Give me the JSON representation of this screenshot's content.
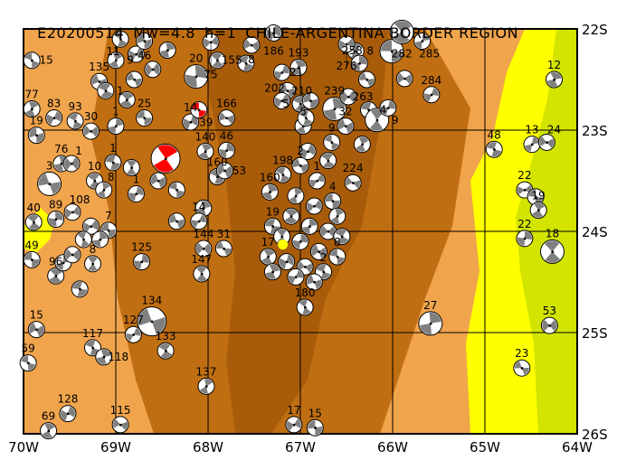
{
  "title": {
    "event_id": "E20200514",
    "magnitude": "Mw=4.8",
    "depth": "h=1",
    "region": "CHILE-ARGENTINA BORDER REGION"
  },
  "map": {
    "lon_range": [
      -70,
      -64
    ],
    "lat_range": [
      -26,
      -22
    ],
    "lon_ticks": [
      "70W",
      "69W",
      "68W",
      "67W",
      "66W",
      "65W",
      "64W"
    ],
    "lat_ticks": [
      "22S",
      "23S",
      "24S",
      "25S",
      "26S"
    ],
    "grid": true,
    "colors": {
      "lowland_orange": "#f0a44c",
      "highland_brown": "#c06e12",
      "peak_brown": "#a85c0a",
      "plain_yellow": "#ffff00",
      "plain_green": "#d2e400",
      "mechanism_fill": "#808080",
      "highlight_mechanism": "#ff0000",
      "epicenter": "#ffff00"
    },
    "epicenter": {
      "lon": -67.19,
      "lat": -24.13
    }
  },
  "mechanisms": [
    {
      "lon": -69.91,
      "lat": -22.31,
      "label": "15"
    },
    {
      "lon": -69.91,
      "lat": -22.79,
      "label": "77"
    },
    {
      "lon": -69.67,
      "lat": -22.88,
      "label": "83"
    },
    {
      "lon": -69.86,
      "lat": -23.05,
      "label": "19"
    },
    {
      "lon": -69.44,
      "lat": -22.91,
      "label": "93"
    },
    {
      "lon": -69.59,
      "lat": -23.33,
      "label": "76"
    },
    {
      "lon": -69.48,
      "lat": -23.33,
      "label": "1"
    },
    {
      "lon": -69.72,
      "lat": -23.53,
      "label": "3",
      "size": "l"
    },
    {
      "lon": -69.89,
      "lat": -23.91,
      "label": "40"
    },
    {
      "lon": -69.65,
      "lat": -23.88,
      "label": "89"
    },
    {
      "lon": -69.47,
      "lat": -23.81,
      "label": "108"
    },
    {
      "lon": -69.91,
      "lat": -24.28,
      "label": "49"
    },
    {
      "lon": -69.65,
      "lat": -24.44,
      "label": "96"
    },
    {
      "lon": -69.57,
      "lat": -24.31,
      "label": ""
    },
    {
      "lon": -69.47,
      "lat": -24.23,
      "label": ""
    },
    {
      "lon": -69.39,
      "lat": -24.57,
      "label": ""
    },
    {
      "lon": -69.25,
      "lat": -24.32,
      "label": "8"
    },
    {
      "lon": -68.72,
      "lat": -24.3,
      "label": "125"
    },
    {
      "lon": -69.86,
      "lat": -24.97,
      "label": "15"
    },
    {
      "lon": -69.95,
      "lat": -25.3,
      "label": "59"
    },
    {
      "lon": -69.73,
      "lat": -25.97,
      "label": "69"
    },
    {
      "lon": -69.52,
      "lat": -25.8,
      "label": "128"
    },
    {
      "lon": -68.95,
      "lat": -25.91,
      "label": "115"
    },
    {
      "lon": -69.25,
      "lat": -25.15,
      "label": "117"
    },
    {
      "lon": -69.13,
      "lat": -25.24,
      "label": "118"
    },
    {
      "lon": -68.81,
      "lat": -25.02,
      "label": "127"
    },
    {
      "lon": -68.61,
      "lat": -24.89,
      "label": "134",
      "size": "xl"
    },
    {
      "lon": -68.46,
      "lat": -25.18,
      "label": "133"
    },
    {
      "lon": -68.02,
      "lat": -25.53,
      "label": "137"
    },
    {
      "lon": -67.07,
      "lat": -25.91,
      "label": "17"
    },
    {
      "lon": -66.84,
      "lat": -25.94,
      "label": "15"
    },
    {
      "lon": -66.95,
      "lat": -24.75,
      "label": "180"
    },
    {
      "lon": -65.59,
      "lat": -24.91,
      "label": "27",
      "size": "l"
    },
    {
      "lon": -64.3,
      "lat": -24.93,
      "label": "53"
    },
    {
      "lon": -64.6,
      "lat": -25.35,
      "label": "23"
    },
    {
      "lon": -64.27,
      "lat": -24.2,
      "label": "18",
      "size": "l"
    },
    {
      "lon": -64.57,
      "lat": -24.07,
      "label": "22"
    },
    {
      "lon": -64.57,
      "lat": -23.59,
      "label": "22"
    },
    {
      "lon": -64.45,
      "lat": -23.66,
      "label": ""
    },
    {
      "lon": -64.42,
      "lat": -23.79,
      "label": "19"
    },
    {
      "lon": -64.49,
      "lat": -23.14,
      "label": "13"
    },
    {
      "lon": -64.33,
      "lat": -23.12,
      "label": "24"
    },
    {
      "lon": -64.9,
      "lat": -23.19,
      "label": "48"
    },
    {
      "lon": -64.25,
      "lat": -22.5,
      "label": "12"
    },
    {
      "lon": -65.58,
      "lat": -22.65,
      "label": "284"
    },
    {
      "lon": -69.18,
      "lat": -22.52,
      "label": "135"
    },
    {
      "lon": -69.11,
      "lat": -22.61,
      "label": "1"
    },
    {
      "lon": -69.0,
      "lat": -22.31,
      "label": "9"
    },
    {
      "lon": -68.78,
      "lat": -22.25,
      "label": ""
    },
    {
      "lon": -68.69,
      "lat": -22.12,
      "label": "46"
    },
    {
      "lon": -68.95,
      "lat": -22.1,
      "label": "11"
    },
    {
      "lon": -68.44,
      "lat": -22.21,
      "label": ""
    },
    {
      "lon": -68.6,
      "lat": -22.4,
      "label": ""
    },
    {
      "lon": -68.8,
      "lat": -22.5,
      "label": ""
    },
    {
      "lon": -67.9,
      "lat": -22.31,
      "label": "155"
    },
    {
      "lon": -68.13,
      "lat": -22.47,
      "label": "20",
      "size": "l"
    },
    {
      "lon": -67.97,
      "lat": -22.13,
      "label": "75"
    },
    {
      "lon": -68.69,
      "lat": -22.88,
      "label": "25"
    },
    {
      "lon": -68.88,
      "lat": -22.7,
      "label": ""
    },
    {
      "lon": -69.0,
      "lat": -22.96,
      "label": "1"
    },
    {
      "lon": -69.27,
      "lat": -23.01,
      "label": "30"
    },
    {
      "lon": -69.03,
      "lat": -23.32,
      "label": "1"
    },
    {
      "lon": -68.83,
      "lat": -23.37,
      "label": ""
    },
    {
      "lon": -68.78,
      "lat": -23.63,
      "label": "1"
    },
    {
      "lon": -68.54,
      "lat": -23.5,
      "label": ""
    },
    {
      "lon": -68.34,
      "lat": -23.59,
      "label": ""
    },
    {
      "lon": -68.03,
      "lat": -23.21,
      "label": "140"
    },
    {
      "lon": -68.19,
      "lat": -22.92,
      "label": "14"
    },
    {
      "lon": -67.8,
      "lat": -22.88,
      "label": "166"
    },
    {
      "lon": -67.9,
      "lat": -23.46,
      "label": "160"
    },
    {
      "lon": -68.05,
      "lat": -23.77,
      "label": ""
    },
    {
      "lon": -68.1,
      "lat": -23.9,
      "label": "14"
    },
    {
      "lon": -68.34,
      "lat": -23.9,
      "label": ""
    },
    {
      "lon": -69.23,
      "lat": -23.5,
      "label": "10"
    },
    {
      "lon": -69.13,
      "lat": -23.59,
      "label": "8"
    },
    {
      "lon": -69.27,
      "lat": -23.95,
      "label": ""
    },
    {
      "lon": -69.08,
      "lat": -23.99,
      "label": "7"
    },
    {
      "lon": -69.35,
      "lat": -24.08,
      "label": ""
    },
    {
      "lon": -69.17,
      "lat": -24.08,
      "label": ""
    },
    {
      "lon": -68.05,
      "lat": -24.17,
      "label": "144"
    },
    {
      "lon": -67.83,
      "lat": -24.17,
      "label": "31"
    },
    {
      "lon": -68.07,
      "lat": -24.42,
      "label": "147"
    },
    {
      "lon": -67.8,
      "lat": -23.2,
      "label": "46"
    },
    {
      "lon": -67.82,
      "lat": -23.4,
      "label": "53"
    },
    {
      "lon": -68.1,
      "lat": -22.8,
      "label": "39",
      "color": "red"
    },
    {
      "lon": -68.46,
      "lat": -23.28,
      "label": "",
      "size": "xl",
      "color": "red"
    },
    {
      "lon": -67.29,
      "lat": -22.04,
      "label": "186"
    },
    {
      "lon": -67.53,
      "lat": -22.16,
      "label": "8"
    },
    {
      "lon": -67.59,
      "lat": -22.34,
      "label": ""
    },
    {
      "lon": -67.02,
      "lat": -22.38,
      "label": "193"
    },
    {
      "lon": -67.2,
      "lat": -22.43,
      "label": "21"
    },
    {
      "lon": -67.14,
      "lat": -22.61,
      "label": "210"
    },
    {
      "lon": -67.0,
      "lat": -22.74,
      "label": "5"
    },
    {
      "lon": -66.97,
      "lat": -22.96,
      "label": "5"
    },
    {
      "lon": -67.2,
      "lat": -22.71,
      "label": "202"
    },
    {
      "lon": -66.89,
      "lat": -22.71,
      "label": ""
    },
    {
      "lon": -66.94,
      "lat": -22.88,
      "label": ""
    },
    {
      "lon": -66.63,
      "lat": -22.79,
      "label": "239",
      "size": "l"
    },
    {
      "lon": -66.48,
      "lat": -22.67,
      "label": "263"
    },
    {
      "lon": -66.28,
      "lat": -22.5,
      "label": ""
    },
    {
      "lon": -66.4,
      "lat": -22.22,
      "label": "8"
    },
    {
      "lon": -66.36,
      "lat": -22.34,
      "label": "258"
    },
    {
      "lon": -66.5,
      "lat": -22.15,
      "label": "276"
    },
    {
      "lon": -66.01,
      "lat": -22.22,
      "label": "",
      "size": "l"
    },
    {
      "lon": -65.9,
      "lat": -22.03,
      "label": "282",
      "size": "l"
    },
    {
      "lon": -65.68,
      "lat": -22.12,
      "label": "285"
    },
    {
      "lon": -65.87,
      "lat": -22.49,
      "label": ""
    },
    {
      "lon": -66.26,
      "lat": -22.8,
      "label": "4"
    },
    {
      "lon": -66.17,
      "lat": -22.9,
      "label": "9",
      "size": "l"
    },
    {
      "lon": -66.05,
      "lat": -22.78,
      "label": ""
    },
    {
      "lon": -66.51,
      "lat": -22.96,
      "label": "32"
    },
    {
      "lon": -66.66,
      "lat": -23.12,
      "label": "9"
    },
    {
      "lon": -66.33,
      "lat": -23.14,
      "label": ""
    },
    {
      "lon": -66.92,
      "lat": -23.21,
      "label": ""
    },
    {
      "lon": -66.43,
      "lat": -23.52,
      "label": "224"
    },
    {
      "lon": -67.19,
      "lat": -23.44,
      "label": "198"
    },
    {
      "lon": -67.33,
      "lat": -23.61,
      "label": "160"
    },
    {
      "lon": -66.82,
      "lat": -23.5,
      "label": "1"
    },
    {
      "lon": -67.0,
      "lat": -23.35,
      "label": "2"
    },
    {
      "lon": -66.7,
      "lat": -23.3,
      "label": ""
    },
    {
      "lon": -67.05,
      "lat": -23.65,
      "label": ""
    },
    {
      "lon": -66.85,
      "lat": -23.75,
      "label": ""
    },
    {
      "lon": -66.65,
      "lat": -23.7,
      "label": "4"
    },
    {
      "lon": -67.1,
      "lat": -23.85,
      "label": ""
    },
    {
      "lon": -66.9,
      "lat": -23.95,
      "label": ""
    },
    {
      "lon": -66.7,
      "lat": -24.0,
      "label": ""
    },
    {
      "lon": -67.3,
      "lat": -23.95,
      "label": "19"
    },
    {
      "lon": -67.2,
      "lat": -24.05,
      "label": ""
    },
    {
      "lon": -67.0,
      "lat": -24.1,
      "label": ""
    },
    {
      "lon": -66.8,
      "lat": -24.2,
      "label": ""
    },
    {
      "lon": -66.6,
      "lat": -24.25,
      "label": "8"
    },
    {
      "lon": -67.35,
      "lat": -24.25,
      "label": "17"
    },
    {
      "lon": -67.15,
      "lat": -24.3,
      "label": ""
    },
    {
      "lon": -66.95,
      "lat": -24.35,
      "label": ""
    },
    {
      "lon": -66.75,
      "lat": -24.4,
      "label": "2"
    },
    {
      "lon": -67.3,
      "lat": -24.4,
      "label": ""
    },
    {
      "lon": -67.05,
      "lat": -24.45,
      "label": ""
    },
    {
      "lon": -66.85,
      "lat": -24.5,
      "label": ""
    },
    {
      "lon": -66.55,
      "lat": -24.05,
      "label": ""
    },
    {
      "lon": -66.6,
      "lat": -23.85,
      "label": ""
    }
  ]
}
